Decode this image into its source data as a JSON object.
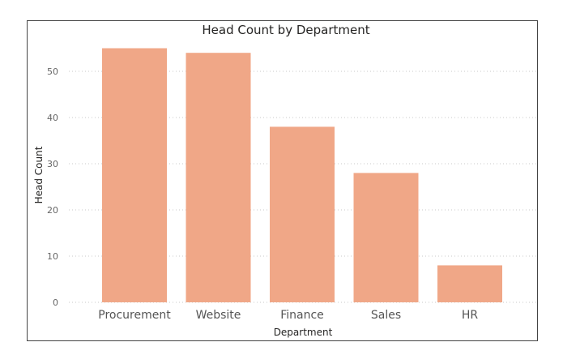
{
  "chart_data": {
    "type": "bar",
    "title": "Head Count by Department",
    "xlabel": "Department",
    "ylabel": "Head Count",
    "categories": [
      "Procurement",
      "Website",
      "Finance",
      "Sales",
      "HR"
    ],
    "values": [
      55,
      54,
      38,
      28,
      8
    ],
    "ylim": [
      0,
      58
    ],
    "yticks": [
      0,
      10,
      20,
      30,
      40,
      50
    ],
    "grid": true,
    "colors": {
      "bar": "#F0A787",
      "grid": "#C8C8C8",
      "border": "#444444"
    }
  }
}
